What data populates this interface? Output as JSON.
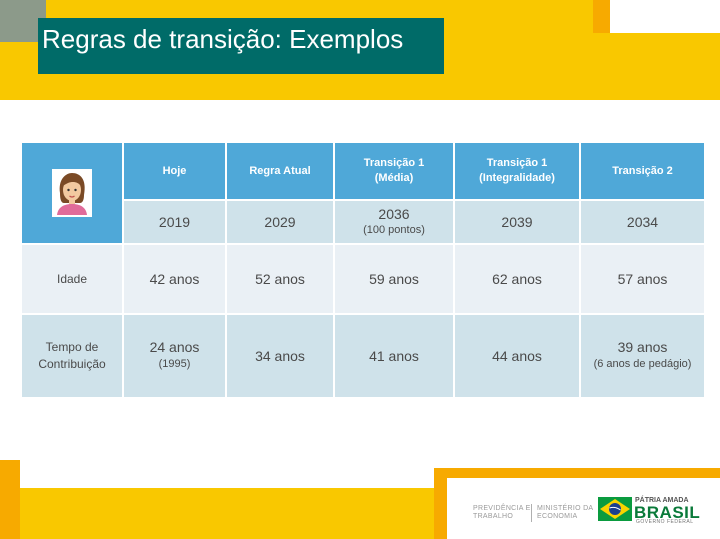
{
  "slide": {
    "title": "Regras de transição: Exemplos"
  },
  "table": {
    "headers": [
      "Hoje",
      "Regra Atual",
      "Transição 1 (Média)",
      "Transição 1 (Integralidade)",
      "Transição 2"
    ],
    "header_lines": [
      [
        "Hoje",
        ""
      ],
      [
        "Regra Atual",
        ""
      ],
      [
        "Transição 1",
        "(Média)"
      ],
      [
        "Transição 1",
        "(Integralidade)"
      ],
      [
        "Transição 2",
        ""
      ]
    ],
    "years": [
      {
        "value": "2019",
        "note": ""
      },
      {
        "value": "2029",
        "note": ""
      },
      {
        "value": "2036",
        "note": "(100 pontos)"
      },
      {
        "value": "2039",
        "note": ""
      },
      {
        "value": "2034",
        "note": ""
      }
    ],
    "rows": [
      {
        "label_lines": [
          "Idade",
          ""
        ],
        "cells": [
          {
            "value": "42 anos",
            "note": ""
          },
          {
            "value": "52 anos",
            "note": ""
          },
          {
            "value": "59 anos",
            "note": ""
          },
          {
            "value": "62 anos",
            "note": ""
          },
          {
            "value": "57 anos",
            "note": ""
          }
        ]
      },
      {
        "label_lines": [
          "Tempo de",
          "Contribuição"
        ],
        "cells": [
          {
            "value": "24 anos",
            "note": "(1995)"
          },
          {
            "value": "34 anos",
            "note": ""
          },
          {
            "value": "41 anos",
            "note": ""
          },
          {
            "value": "44 anos",
            "note": ""
          },
          {
            "value": "39 anos",
            "note": "(6 anos de pedágio)"
          }
        ]
      }
    ]
  },
  "footer": {
    "ministry_left": [
      "PREVIDÊNCIA E",
      "TRABALHO"
    ],
    "ministry_right": [
      "MINISTÉRIO DA",
      "ECONOMIA"
    ],
    "brand_top": "PÁTRIA AMADA",
    "brand_main": "BRASIL",
    "brand_sub": "GOVERNO FEDERAL"
  },
  "icons": {
    "avatar": "woman-avatar-icon",
    "flag": "brazil-flag-icon"
  },
  "colors": {
    "yellow": "#f9c800",
    "orange": "#f7aa00",
    "title_bg": "#006b68",
    "header_blue": "#4fa8d8",
    "cell_light": "#eaf0f5",
    "cell_mid": "#cfe2ea",
    "brand_green": "#0a7a3a"
  }
}
